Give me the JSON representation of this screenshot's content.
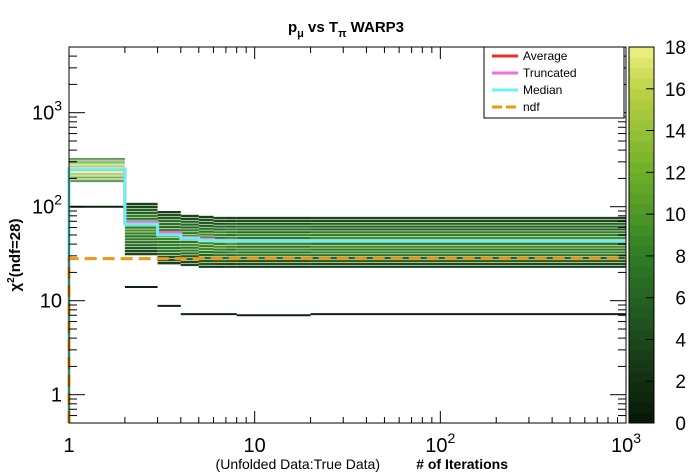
{
  "chart_data": {
    "type": "heatmap",
    "title": {
      "p": "p",
      "mu": "μ",
      "vs": " vs ",
      "T": "T",
      "pi": "π",
      "tail": " WARP3"
    },
    "xlabel": "# of Iterations",
    "xlabel_prefix": "(Unfolded Data:True Data)",
    "ylabel": {
      "chi": "χ",
      "sup": "2",
      "rest": "(ndf=28)"
    },
    "x_scale": "log",
    "y_scale": "log",
    "xlim": [
      1,
      1000
    ],
    "ylim": [
      0.5,
      5000
    ],
    "x_ticks": [
      {
        "value": 1,
        "base": "1",
        "exp": ""
      },
      {
        "value": 10,
        "base": "10",
        "exp": ""
      },
      {
        "value": 100,
        "base": "10",
        "exp": "2"
      },
      {
        "value": 1000,
        "base": "10",
        "exp": "3"
      }
    ],
    "y_ticks": [
      {
        "value": 1,
        "base": "1",
        "exp": ""
      },
      {
        "value": 10,
        "base": "10",
        "exp": ""
      },
      {
        "value": 100,
        "base": "10",
        "exp": "2"
      },
      {
        "value": 1000,
        "base": "10",
        "exp": "3"
      }
    ],
    "colorbar": {
      "min": 0,
      "max": 18,
      "ticks": [
        0,
        2,
        4,
        6,
        8,
        10,
        12,
        14,
        16,
        18
      ]
    },
    "heatmap_columns": [
      {
        "x0": 1,
        "x1": 2,
        "y_lo": 180,
        "y_hi": 330,
        "count": 16
      },
      {
        "x0": 2,
        "x1": 3,
        "y_lo": 30,
        "y_hi": 110,
        "count": 9
      },
      {
        "x0": 3,
        "x1": 4,
        "y_lo": 24,
        "y_hi": 90,
        "count": 9
      },
      {
        "x0": 4,
        "x1": 5,
        "y_lo": 23,
        "y_hi": 82,
        "count": 9
      },
      {
        "x0": 5,
        "x1": 6,
        "y_lo": 22,
        "y_hi": 80,
        "count": 9
      },
      {
        "x0": 6,
        "x1": 7,
        "y_lo": 22,
        "y_hi": 78,
        "count": 9
      },
      {
        "x0": 7,
        "x1": 8,
        "y_lo": 22,
        "y_hi": 78,
        "count": 9
      },
      {
        "x0": 8,
        "x1": 20,
        "y_lo": 22,
        "y_hi": 78,
        "count": 9
      },
      {
        "x0": 20,
        "x1": 1000,
        "y_lo": 22,
        "y_hi": 78,
        "count": 9
      }
    ],
    "outlier_segments": [
      {
        "x0": 2,
        "x1": 3,
        "y": 14,
        "count": 1
      },
      {
        "x0": 3,
        "x1": 4,
        "y": 8.8,
        "count": 1
      },
      {
        "x0": 4,
        "x1": 8,
        "y": 7.2,
        "count": 1
      },
      {
        "x0": 8,
        "x1": 20,
        "y": 7.0,
        "count": 1
      },
      {
        "x0": 20,
        "x1": 1000,
        "y": 7.2,
        "count": 1
      },
      {
        "x0": 1,
        "x1": 2,
        "y": 100,
        "count": 1
      }
    ],
    "series": [
      {
        "name": "Average",
        "color": "#e8322f",
        "dashed": false,
        "steps": [
          [
            1,
            250
          ],
          [
            2,
            68
          ],
          [
            3,
            53
          ],
          [
            4,
            47
          ],
          [
            5,
            45
          ],
          [
            6,
            44
          ],
          [
            8,
            43.5
          ],
          [
            20,
            43.5
          ],
          [
            1000,
            43.5
          ]
        ]
      },
      {
        "name": "Truncated",
        "color": "#f26ee0",
        "dashed": false,
        "steps": [
          [
            1,
            250
          ],
          [
            2,
            68
          ],
          [
            3,
            53
          ],
          [
            4,
            47
          ],
          [
            5,
            45
          ],
          [
            6,
            44
          ],
          [
            8,
            43.5
          ],
          [
            20,
            43.5
          ],
          [
            1000,
            43.5
          ]
        ]
      },
      {
        "name": "Median",
        "color": "#6ef0f0",
        "dashed": false,
        "steps": [
          [
            1,
            250
          ],
          [
            2,
            65
          ],
          [
            3,
            50
          ],
          [
            4,
            46
          ],
          [
            5,
            44
          ],
          [
            6,
            43.5
          ],
          [
            8,
            43.5
          ],
          [
            20,
            43.5
          ],
          [
            1000,
            43.5
          ]
        ]
      },
      {
        "name": "ndf",
        "color": "#f5960f",
        "dashed": true,
        "steps": [
          [
            1,
            28
          ],
          [
            1000,
            28
          ]
        ]
      }
    ],
    "legend": [
      "Average",
      "Truncated",
      "Median",
      "ndf"
    ],
    "legend_position": "top-right"
  }
}
